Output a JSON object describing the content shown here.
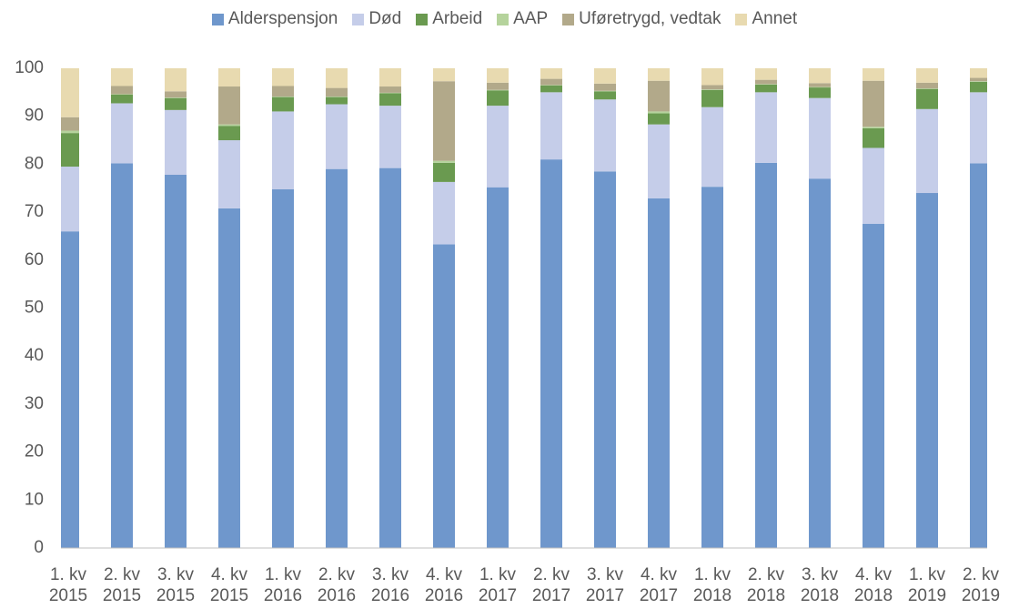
{
  "chart_data": {
    "type": "stacked_bar",
    "categories": [
      "1. kv 2015",
      "2. kv 2015",
      "3. kv 2015",
      "4. kv 2015",
      "1. kv 2016",
      "2. kv 2016",
      "3. kv 2016",
      "4. kv 2016",
      "1. kv 2017",
      "2. kv 2017",
      "3. kv 2017",
      "4. kv 2017",
      "1. kv 2018",
      "2. kv 2018",
      "3. kv 2018",
      "4. kv 2018",
      "1. kv 2019",
      "2. kv 2019"
    ],
    "series": [
      {
        "name": "Alderspensjon",
        "color": "#6f97cc",
        "values": [
          66,
          80.2,
          77.8,
          70.8,
          74.8,
          79,
          79.2,
          63.3,
          75.2,
          81,
          78.5,
          72.9,
          75.3,
          80.3,
          77,
          67.6,
          74,
          80.2
        ]
      },
      {
        "name": "Død",
        "color": "#c5cde9",
        "values": [
          13.5,
          12.5,
          13.5,
          14.2,
          16.2,
          13.5,
          13,
          13,
          17,
          14,
          15,
          15.4,
          16.6,
          14.7,
          16.8,
          15.8,
          17.5,
          14.8
        ]
      },
      {
        "name": "Arbeid",
        "color": "#6a9a50",
        "values": [
          7,
          1.8,
          2.5,
          3,
          3,
          1.5,
          2.6,
          4,
          3.2,
          1.4,
          1.7,
          2.3,
          3.6,
          1.6,
          2.2,
          4.1,
          4.2,
          2.2
        ]
      },
      {
        "name": "AAP",
        "color": "#b5d39c",
        "values": [
          0.5,
          0.1,
          0.1,
          0.3,
          0.1,
          0.1,
          0.1,
          0.4,
          0.1,
          0.1,
          0.1,
          0.4,
          0.1,
          0.1,
          0.1,
          0.3,
          0.1,
          0.1
        ]
      },
      {
        "name": "Uføretrygd, vedtak",
        "color": "#b2a98a",
        "values": [
          2.8,
          1.7,
          1.3,
          7.9,
          2.2,
          1.8,
          1.3,
          16.6,
          1.5,
          1.3,
          1.5,
          6.4,
          0.9,
          0.9,
          0.8,
          9.6,
          1.2,
          0.7
        ]
      },
      {
        "name": "Annet",
        "color": "#e8dab0",
        "values": [
          10.2,
          3.7,
          4.8,
          3.8,
          3.7,
          4.1,
          3.8,
          2.7,
          3,
          2.2,
          3.2,
          2.6,
          3.5,
          2.4,
          3.1,
          2.6,
          3,
          2
        ]
      }
    ],
    "ylim": [
      0,
      100
    ],
    "yticks": [
      0,
      10,
      20,
      30,
      40,
      50,
      60,
      70,
      80,
      90,
      100
    ],
    "legend": "top"
  }
}
